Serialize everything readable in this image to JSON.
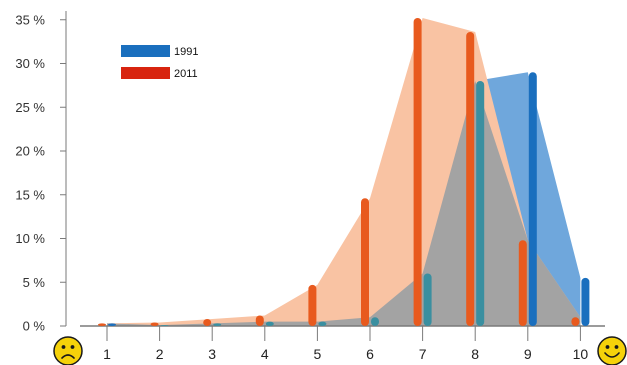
{
  "chart_data": {
    "type": "bar",
    "x": [
      1,
      2,
      3,
      4,
      5,
      6,
      7,
      8,
      9,
      10
    ],
    "x_tick_labels": [
      "1",
      "2",
      "3",
      "4",
      "5",
      "6",
      "7",
      "8",
      "9",
      "10"
    ],
    "y_tick_labels": [
      "0 %",
      "5 %",
      "10 %",
      "15 %",
      "20 %",
      "25 %",
      "30 %",
      "35 %"
    ],
    "ylim": [
      0,
      36
    ],
    "ytick_step": 5,
    "grid": false,
    "legend_position": "top-left",
    "series": [
      {
        "name": "1991",
        "color": "#1a6fbe",
        "area_color": "#6fa7dc",
        "values": [
          0.3,
          0.1,
          0.3,
          0.5,
          0.5,
          1.0,
          6.0,
          28.0,
          29.0,
          5.5
        ]
      },
      {
        "name": "2011",
        "color": "#e85a1e",
        "legend_color": "#d8240f",
        "area_color": "#f9c3a3",
        "values": [
          0.3,
          0.4,
          0.8,
          1.2,
          4.7,
          14.6,
          35.2,
          33.6,
          9.8,
          1.0
        ]
      }
    ],
    "overlap_color": "#a3a3a3",
    "teal_color": "#3a8fa0",
    "end_icons": [
      "sad-face-icon",
      "happy-face-icon"
    ]
  }
}
